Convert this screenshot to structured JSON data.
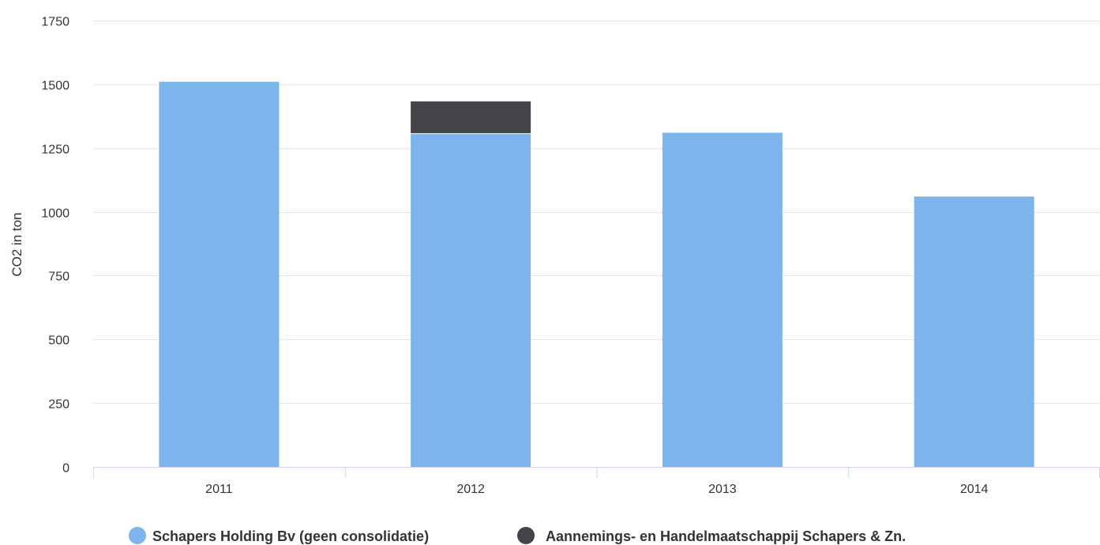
{
  "chart_data": {
    "type": "bar",
    "stacked": true,
    "categories": [
      "2011",
      "2012",
      "2013",
      "2014"
    ],
    "series": [
      {
        "name": "Schapers Holding Bv (geen consolidatie)",
        "color": "#7cb5ec",
        "values": [
          1510,
          1305,
          1310,
          1060
        ]
      },
      {
        "name": "Aannemings- en Handelmaatschappij Schapers & Zn.",
        "color": "#434348",
        "values": [
          0,
          128,
          0,
          0
        ]
      }
    ],
    "title": "",
    "xlabel": "",
    "ylabel": "CO2 in ton",
    "ylim": [
      0,
      1750
    ],
    "yticks": [
      0,
      250,
      500,
      750,
      1000,
      1250,
      1500,
      1750
    ],
    "grid": true,
    "legend_position": "bottom-center"
  }
}
